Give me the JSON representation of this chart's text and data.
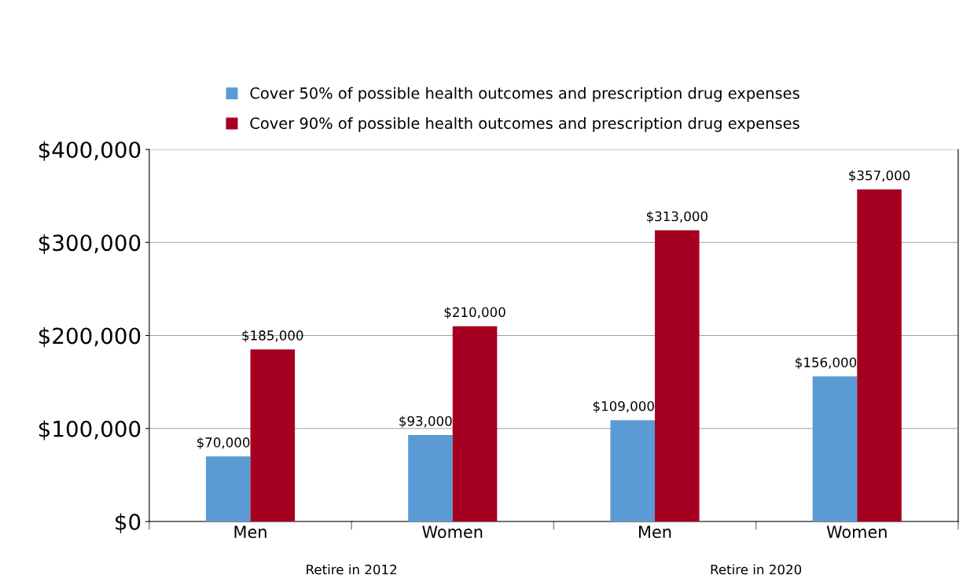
{
  "chart_data": {
    "type": "bar",
    "categories": [
      "Men",
      "Women",
      "Men",
      "Women"
    ],
    "series": [
      {
        "name": "Cover 50% of possible health outcomes and prescription drug expenses",
        "color": "#5b9bd5",
        "values": [
          70000,
          93000,
          109000,
          156000
        ],
        "value_labels": [
          "$70,000",
          "$93,000",
          "$109,000",
          "$156,000"
        ]
      },
      {
        "name": "Cover 90% of possible health outcomes and prescription drug expenses",
        "color": "#a50021",
        "values": [
          185000,
          210000,
          313000,
          357000
        ],
        "value_labels": [
          "$185,000",
          "$210,000",
          "$313,000",
          "$357,000"
        ]
      }
    ],
    "ylim": [
      0,
      400000
    ],
    "yticks": [
      {
        "value": 0,
        "label": "$0"
      },
      {
        "value": 100000,
        "label": "$100,000"
      },
      {
        "value": 200000,
        "label": "$200,000"
      },
      {
        "value": 300000,
        "label": "$300,000"
      },
      {
        "value": 400000,
        "label": "$400,000"
      }
    ],
    "grid": "y",
    "legend": "top",
    "annotations": [
      "Retire in 2012",
      "Retire in 2020"
    ]
  }
}
